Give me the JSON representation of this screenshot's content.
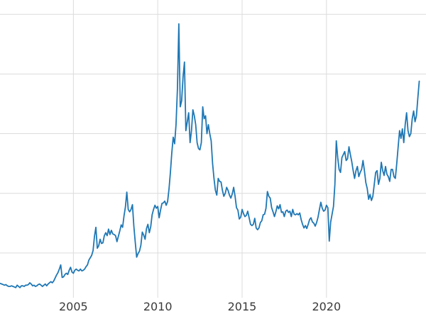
{
  "chart_data": {
    "type": "line",
    "title": "",
    "xlabel": "",
    "ylabel": "",
    "grid": true,
    "legend_position": "none",
    "background_color": "#ffffff",
    "line_color": "#1f77b4",
    "grid_color": "#dcdcdc",
    "tick_label_color": "#3a3a3a",
    "xlim": [
      2000.65,
      2025.9
    ],
    "ylim": [
      2.5,
      52.4
    ],
    "x_tick_values": [
      2005,
      2010,
      2015,
      2020
    ],
    "x_tick_labels": [
      "2005",
      "2010",
      "2015",
      "2020"
    ],
    "y_tick_labels": [],
    "y_gridline_values": [
      10,
      20,
      30,
      40,
      50
    ],
    "series": [
      {
        "name": "series1",
        "x_start_year": 2000.6667,
        "x_interval_years": 0.0833333,
        "values": [
          4.9,
          4.8,
          4.7,
          4.6,
          4.7,
          4.5,
          4.4,
          4.4,
          4.5,
          4.4,
          4.3,
          4.2,
          4.6,
          4.4,
          4.2,
          4.5,
          4.5,
          4.4,
          4.6,
          4.6,
          4.7,
          5.0,
          4.8,
          4.5,
          4.6,
          4.4,
          4.5,
          4.7,
          4.8,
          4.6,
          4.4,
          4.6,
          4.8,
          4.5,
          4.8,
          5.0,
          5.2,
          5.0,
          5.3,
          5.8,
          6.3,
          6.7,
          7.3,
          8.0,
          5.9,
          6.0,
          6.4,
          6.6,
          6.4,
          7.1,
          7.6,
          6.8,
          6.6,
          7.1,
          7.3,
          7.1,
          7.0,
          7.3,
          7.0,
          7.1,
          7.3,
          7.7,
          8.0,
          8.8,
          9.2,
          9.6,
          10.4,
          12.8,
          14.3,
          10.8,
          11.2,
          12.3,
          11.6,
          11.7,
          12.9,
          13.4,
          12.9,
          14.0,
          13.1,
          13.8,
          13.2,
          13.1,
          12.9,
          11.9,
          12.8,
          13.7,
          14.7,
          14.3,
          16.2,
          17.7,
          20.2,
          17.3,
          16.9,
          17.3,
          18.1,
          14.5,
          11.8,
          9.3,
          9.9,
          10.3,
          11.3,
          13.5,
          13.0,
          12.3,
          14.1,
          14.8,
          13.4,
          14.4,
          16.4,
          17.3,
          18.0,
          17.5,
          17.8,
          15.9,
          17.2,
          18.3,
          18.4,
          18.7,
          18.0,
          18.6,
          20.7,
          23.5,
          26.8,
          29.4,
          28.3,
          31.5,
          37.5,
          48.4,
          34.5,
          35.5,
          39.5,
          42.0,
          30.5,
          32.0,
          33.5,
          28.5,
          30.5,
          34.0,
          33.0,
          31.5,
          28.5,
          27.5,
          27.3,
          28.5,
          34.5,
          32.5,
          33.0,
          30.0,
          31.5,
          30.0,
          28.8,
          25.0,
          22.5,
          20.5,
          19.7,
          22.5,
          22.0,
          21.9,
          20.5,
          19.5,
          20.0,
          21.0,
          20.5,
          19.7,
          19.2,
          19.9,
          21.0,
          19.5,
          17.6,
          17.2,
          15.7,
          16.0,
          17.3,
          16.6,
          16.1,
          16.3,
          17.0,
          15.9,
          14.8,
          14.6,
          14.8,
          15.8,
          14.2,
          13.9,
          14.2,
          15.1,
          15.4,
          16.4,
          16.5,
          17.5,
          20.3,
          19.5,
          19.2,
          17.6,
          16.9,
          16.1,
          16.9,
          17.9,
          17.4,
          18.1,
          16.8,
          16.9,
          16.1,
          17.0,
          17.2,
          16.8,
          17.0,
          16.1,
          17.3,
          16.5,
          16.4,
          16.6,
          16.4,
          16.7,
          15.6,
          14.8,
          14.2,
          14.6,
          14.1,
          14.8,
          15.6,
          15.9,
          15.2,
          15.0,
          14.5,
          15.1,
          16.0,
          17.3,
          18.5,
          17.5,
          17.0,
          17.2,
          18.0,
          17.6,
          12.0,
          15.2,
          16.5,
          17.8,
          21.5,
          28.8,
          26.0,
          24.0,
          23.5,
          26.0,
          26.5,
          27.0,
          25.5,
          25.8,
          27.8,
          26.5,
          25.3,
          23.8,
          22.5,
          23.8,
          24.5,
          22.8,
          23.5,
          24.0,
          25.5,
          23.8,
          21.8,
          20.8,
          19.0,
          19.8,
          18.8,
          19.5,
          21.5,
          23.5,
          23.8,
          21.5,
          22.5,
          25.2,
          23.8,
          23.0,
          24.5,
          23.2,
          22.8,
          22.0,
          24.0,
          24.0,
          22.8,
          22.5,
          25.0,
          27.8,
          30.5,
          29.2,
          30.8,
          28.5,
          31.5,
          33.5,
          30.5,
          29.5,
          30.0,
          32.5,
          33.8,
          32.0,
          33.0,
          36.0,
          38.8
        ]
      }
    ]
  }
}
